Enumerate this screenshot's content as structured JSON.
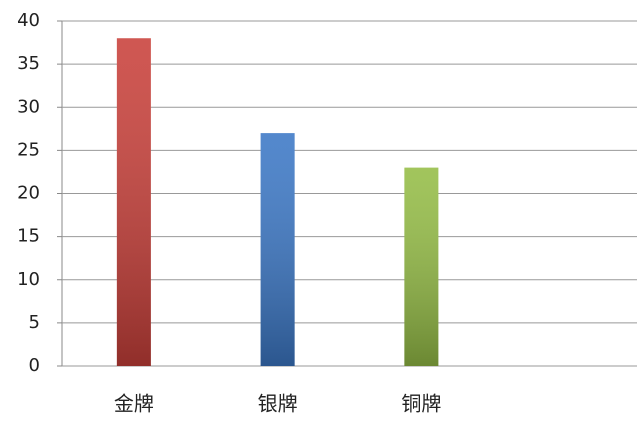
{
  "chart_data": {
    "type": "bar",
    "categories": [
      "金牌",
      "银牌",
      "铜牌",
      null
    ],
    "values": [
      38,
      27,
      23,
      null
    ],
    "colors": [
      "#c9403a",
      "#3c78c6",
      "#95bd46"
    ],
    "ylim": [
      0,
      40
    ],
    "yticks": [
      0,
      5,
      10,
      15,
      20,
      25,
      30,
      35,
      40
    ],
    "grid": true
  }
}
